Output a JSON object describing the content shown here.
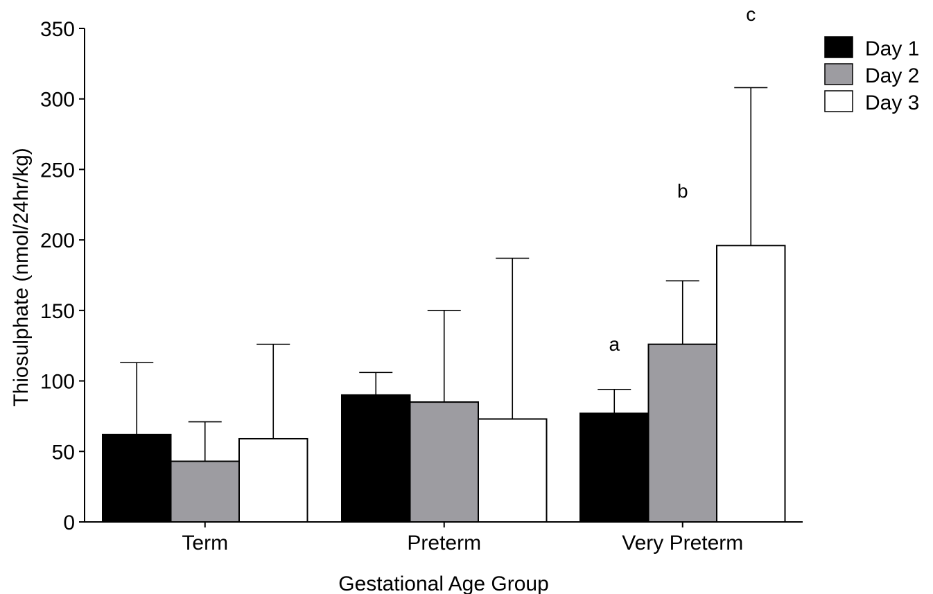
{
  "chart_data": {
    "type": "bar",
    "xlabel": "Gestational Age Group",
    "ylabel": "Thiosulphate (nmol/24hr/kg)",
    "ylim": [
      0,
      350
    ],
    "yticks": [
      "0",
      "50",
      "100",
      "150",
      "200",
      "250",
      "300",
      "350"
    ],
    "grid": false,
    "legend_position": "top-right",
    "categories": [
      "Term",
      "Preterm",
      "Very Preterm"
    ],
    "series": [
      {
        "name": "Day 1",
        "color": "#000000",
        "values": [
          62,
          90,
          77
        ],
        "error": [
          51,
          16,
          17
        ]
      },
      {
        "name": "Day 2",
        "color": "#9d9ca1",
        "values": [
          43,
          85,
          126
        ],
        "error": [
          28,
          65,
          45
        ]
      },
      {
        "name": "Day 3",
        "color": "#ffffff",
        "values": [
          59,
          73,
          196
        ],
        "error": [
          67,
          114,
          112
        ]
      }
    ],
    "annotations": [
      {
        "text": "a",
        "category": "Very Preterm",
        "series": "Day 1"
      },
      {
        "text": "b",
        "category": "Very Preterm",
        "series": "Day 2"
      },
      {
        "text": "c",
        "category": "Very Preterm",
        "series": "Day 3"
      }
    ]
  }
}
